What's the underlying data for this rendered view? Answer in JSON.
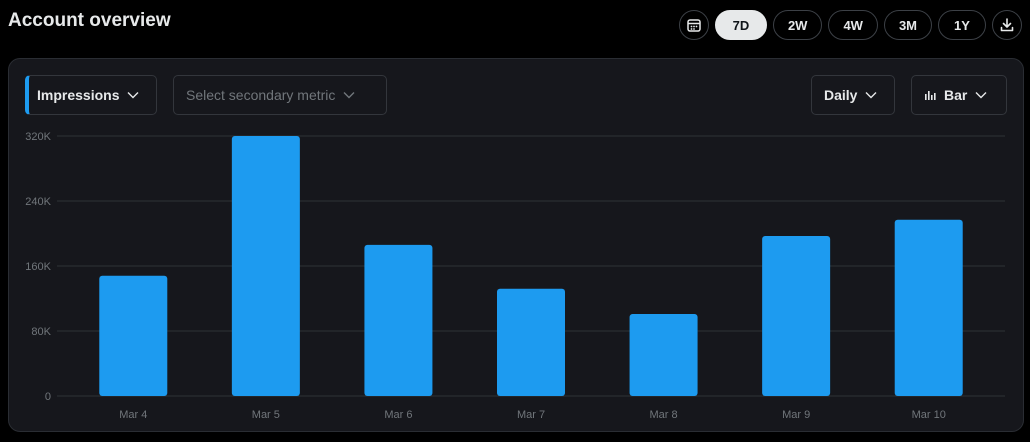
{
  "header": {
    "title": "Account overview",
    "ranges": [
      "7D",
      "2W",
      "4W",
      "3M",
      "1Y"
    ],
    "active_range": "7D"
  },
  "controls": {
    "primary_metric": "Impressions",
    "secondary_placeholder": "Select secondary metric",
    "granularity": "Daily",
    "chart_type": "Bar"
  },
  "colors": {
    "bar": "#1d9bf0",
    "panel": "#16171c",
    "grid": "#2f3336",
    "axis_text": "#71767b"
  },
  "chart_data": {
    "type": "bar",
    "categories": [
      "Mar 4",
      "Mar 5",
      "Mar 6",
      "Mar 7",
      "Mar 8",
      "Mar 9",
      "Mar 10"
    ],
    "values": [
      148000,
      320000,
      186000,
      132000,
      101000,
      197000,
      217000
    ],
    "yticks": [
      "0",
      "80K",
      "160K",
      "240K",
      "320K"
    ],
    "ylim": [
      0,
      320000
    ],
    "grid": true,
    "title": "",
    "xlabel": "",
    "ylabel": ""
  }
}
